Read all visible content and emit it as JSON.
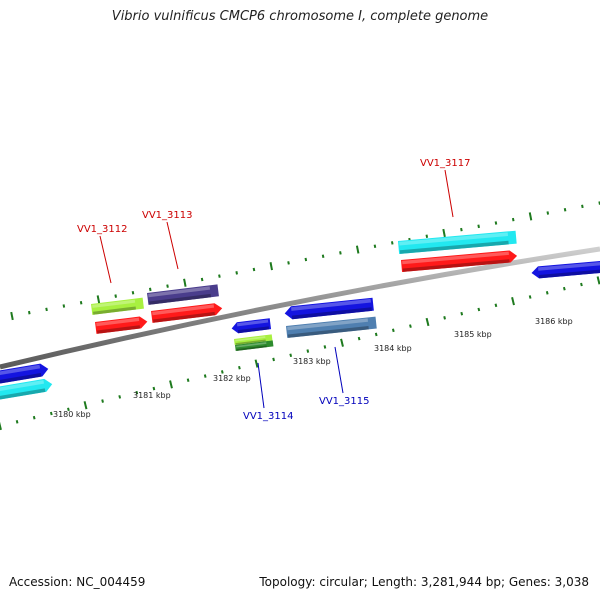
{
  "title": "Vibrio vulnificus CMCP6 chromosome I, complete genome",
  "footer": {
    "accession": "Accession: NC_004459",
    "summary": "Topology: circular; Length: 3,281,944 bp; Genes: 3,038"
  },
  "colors": {
    "backbone": "#888888",
    "tick": "#1e7a1e",
    "label_forward": "#cc0000",
    "label_reverse": "#0000bb",
    "blue": "#1414e0",
    "cyan": "#22e8f0",
    "red": "#ff1a1a",
    "lime": "#a8f040",
    "purple": "#4a3d8c",
    "steel": "#4f7fb0",
    "green": "#2e8b2e"
  },
  "scale_labels": [
    "3180 kbp",
    "3181 kbp",
    "3182 kbp",
    "3183 kbp",
    "3184 kbp",
    "3185 kbp",
    "3186 kbp"
  ],
  "gene_labels": [
    {
      "text": "VV1_3112",
      "strand": "forward"
    },
    {
      "text": "VV1_3113",
      "strand": "forward"
    },
    {
      "text": "VV1_3117",
      "strand": "forward"
    },
    {
      "text": "VV1_3114",
      "strand": "reverse"
    },
    {
      "text": "VV1_3115",
      "strand": "reverse"
    }
  ]
}
